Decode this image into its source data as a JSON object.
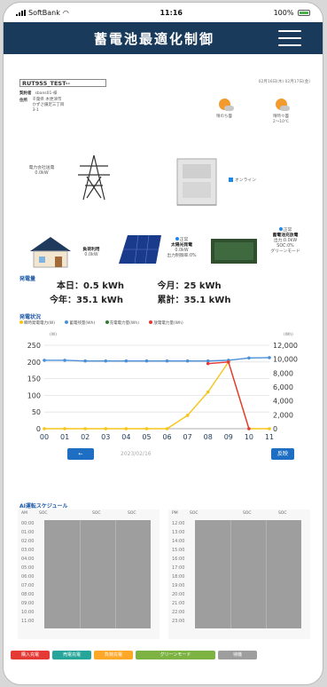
{
  "status_bar": {
    "carrier": "SoftBank",
    "time": "11:16",
    "battery": "100%"
  },
  "header": {
    "title": "蓄電池最適化制御"
  },
  "site": {
    "name": "RUT955_TEST--",
    "contract_label": "契約者",
    "contract_value": "sbans01-様",
    "address_label": "住所",
    "address_lines": [
      "千葉県 木更津市",
      "かずさ鎌足三丁目",
      "3-1"
    ],
    "dates": "02月16日(木) 02月17日(金)"
  },
  "weather": [
    {
      "label": "晴のち曇",
      "temp": ""
    },
    {
      "label": "晴時々曇",
      "temp": "2～10℃"
    }
  ],
  "diagram": {
    "grid_label": "電力会社送電",
    "grid_value": "0.0kW",
    "online_label": "オンライン",
    "load_label": "負荷利用",
    "load_value": "0.0kW",
    "solar_status": "正常",
    "solar_label": "太陽光発電",
    "solar_value": "0.0kW",
    "solar_limit": "出力制御率:0%",
    "battery_status": "正常",
    "battery_label": "蓄電池充放電",
    "battery_output": "出力:0.0kW",
    "battery_soc": "SOC:0%",
    "battery_mode": "グリーンモード"
  },
  "generation": {
    "title": "発電量",
    "today_label": "本日：0.5 kWh",
    "month_label": "今月：25 kWh",
    "year_label": "今年：35.1 kWh",
    "total_label": "累計：35.1 kWh"
  },
  "chart_section": {
    "title": "発電状況",
    "legend": [
      {
        "name": "瞬時発電電力(W)",
        "color": "#f5c518"
      },
      {
        "name": "蓄電残量(Wh)",
        "color": "#4a90d9"
      },
      {
        "name": "充電電力量(Wh)",
        "color": "#2e7d32"
      },
      {
        "name": "放電電力量(Wh)",
        "color": "#e53935"
      }
    ],
    "left_unit": "(W)",
    "right_unit": "(Wh)",
    "date": "2023/02/16",
    "prev_label": "←",
    "return_label": "反映"
  },
  "chart_data": {
    "type": "line",
    "x": [
      "00",
      "01",
      "02",
      "03",
      "04",
      "05",
      "06",
      "07",
      "08",
      "09",
      "10",
      "11"
    ],
    "y_left_ticks": [
      0,
      50,
      100,
      150,
      200,
      250
    ],
    "y_right_ticks": [
      "0",
      "2,000",
      "4,000",
      "6,000",
      "8,000",
      "10,000",
      "12,000"
    ],
    "ylim_left": [
      0,
      250
    ],
    "ylim_right": [
      0,
      12000
    ],
    "series": [
      {
        "name": "蓄電残量(Wh)",
        "axis": "left",
        "color": "#4a90d9",
        "values": [
          205,
          205,
          203,
          203,
          203,
          203,
          203,
          203,
          203,
          205,
          212,
          213
        ]
      },
      {
        "name": "瞬時発電電力(W)",
        "axis": "left",
        "color": "#f5c518",
        "values": [
          0,
          0,
          0,
          0,
          0,
          0,
          0,
          40,
          110,
          200,
          0,
          0
        ]
      },
      {
        "name": "放電電力量(Wh)",
        "axis": "left",
        "color": "#e53935",
        "values": [
          null,
          null,
          null,
          null,
          null,
          null,
          null,
          null,
          195,
          200,
          0,
          null
        ]
      }
    ]
  },
  "ai_schedule": {
    "title": "AI運転スケジュール",
    "am": {
      "header": "AM",
      "cols": [
        "SOC",
        "SOC",
        "SOC"
      ],
      "times": [
        "00:00",
        "01:00",
        "02:00",
        "03:00",
        "04:00",
        "05:00",
        "06:00",
        "07:00",
        "08:00",
        "09:00",
        "10:00",
        "11:00"
      ]
    },
    "pm": {
      "header": "PM",
      "cols": [
        "SOC",
        "SOC",
        "SOC"
      ],
      "times": [
        "12:00",
        "13:00",
        "14:00",
        "15:00",
        "16:00",
        "17:00",
        "18:00",
        "19:00",
        "20:00",
        "21:00",
        "22:00",
        "23:00"
      ]
    }
  },
  "mode_buttons": [
    {
      "label": "購入充電",
      "color": "#e53935"
    },
    {
      "label": "売電充電",
      "color": "#26a69a"
    },
    {
      "label": "負荷充電",
      "color": "#ffa726"
    },
    {
      "label": "グリーンモード",
      "color": "#7cb342"
    },
    {
      "label": "待機",
      "color": "#9e9e9e"
    }
  ]
}
